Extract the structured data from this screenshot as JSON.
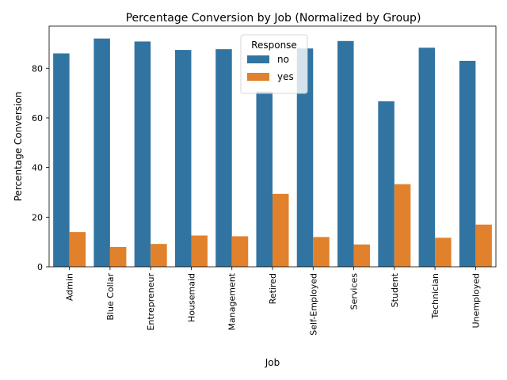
{
  "chart_data": {
    "type": "bar",
    "title": "Percentage Conversion by Job (Normalized by Group)",
    "xlabel": "Job",
    "ylabel": "Percentage Conversion",
    "categories": [
      "Admin",
      "Blue Collar",
      "Entrepreneur",
      "Housemaid",
      "Management",
      "Retired",
      "Self-Employed",
      "Services",
      "Student",
      "Technician",
      "Unemployed"
    ],
    "series": [
      {
        "name": "no",
        "color": "#3274a1",
        "values": [
          86.0,
          92.0,
          90.8,
          87.4,
          87.7,
          70.6,
          88.0,
          91.0,
          66.7,
          88.3,
          83.0
        ]
      },
      {
        "name": "yes",
        "color": "#e1812c",
        "values": [
          14.0,
          8.0,
          9.2,
          12.6,
          12.3,
          29.4,
          12.0,
          9.0,
          33.3,
          11.7,
          17.0
        ]
      }
    ],
    "ylim": [
      0,
      97
    ],
    "yticks": [
      0,
      20,
      40,
      60,
      80
    ],
    "grid": false,
    "legend": {
      "title": "Response",
      "placement": "top-center"
    }
  }
}
